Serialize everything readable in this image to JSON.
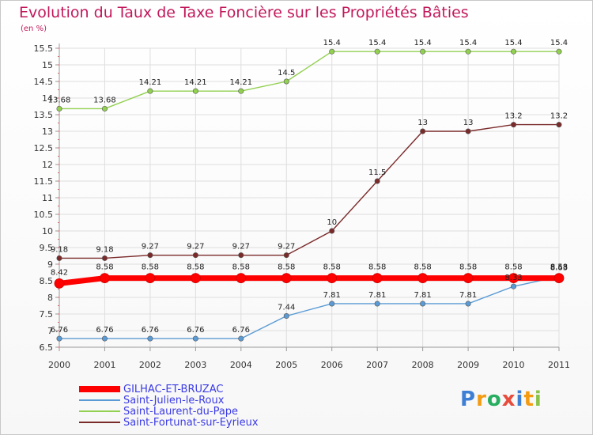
{
  "chart_data": {
    "type": "line",
    "title": "Evolution du Taux de Taxe Foncière sur les Propriétés Bâties",
    "unit_label": "(en %)",
    "x": [
      "2000",
      "2001",
      "2002",
      "2003",
      "2004",
      "2005",
      "2006",
      "2007",
      "2008",
      "2009",
      "2010",
      "2011"
    ],
    "ylim": [
      6.5,
      15.5
    ],
    "yticks": [
      "6.5",
      "7",
      "7.5",
      "8",
      "8.5",
      "9",
      "9.5",
      "10",
      "10.5",
      "11",
      "11.5",
      "12",
      "12.5",
      "13",
      "13.5",
      "14",
      "14.5",
      "15",
      "15.5"
    ],
    "grid": true,
    "legend_position": "bottom-left",
    "series": [
      {
        "name": "GILHAC-ET-BRUZAC",
        "color": "#ff0000",
        "values": [
          8.42,
          8.58,
          8.58,
          8.58,
          8.58,
          8.58,
          8.58,
          8.58,
          8.58,
          8.58,
          8.58,
          8.58
        ],
        "labels": [
          "8.42",
          "8.58",
          "8.58",
          "8.58",
          "8.58",
          "8.58",
          "8.58",
          "8.58",
          "8.58",
          "8.58",
          "8.58",
          "8.58"
        ]
      },
      {
        "name": "Saint-Julien-le-Roux",
        "color": "#5b9bd5",
        "values": [
          6.76,
          6.76,
          6.76,
          6.76,
          6.76,
          7.44,
          7.81,
          7.81,
          7.81,
          7.81,
          8.33,
          8.63
        ],
        "labels": [
          "6.76",
          "6.76",
          "6.76",
          "6.76",
          "6.76",
          "7.44",
          "7.81",
          "7.81",
          "7.81",
          "7.81",
          "8.33",
          "8.63"
        ]
      },
      {
        "name": "Saint-Laurent-du-Pape",
        "color": "#92d050",
        "values": [
          13.68,
          13.68,
          14.21,
          14.21,
          14.21,
          14.5,
          15.4,
          15.4,
          15.4,
          15.4,
          15.4,
          15.4
        ],
        "labels": [
          "13.68",
          "13.68",
          "14.21",
          "14.21",
          "14.21",
          "14.5",
          "15.4",
          "15.4",
          "15.4",
          "15.4",
          "15.4",
          "15.4"
        ]
      },
      {
        "name": "Saint-Fortunat-sur-Eyrieux",
        "color": "#7b2a2a",
        "values": [
          9.18,
          9.18,
          9.27,
          9.27,
          9.27,
          9.27,
          10,
          11.5,
          13,
          13,
          13.2,
          13.2
        ],
        "labels": [
          "9.18",
          "9.18",
          "9.27",
          "9.27",
          "9.27",
          "9.27",
          "10",
          "11.5",
          "13",
          "13",
          "13.2",
          "13.2"
        ]
      }
    ]
  },
  "logo": {
    "letters": [
      "P",
      "r",
      "o",
      "x",
      "i",
      "t",
      "i"
    ],
    "colors": [
      "#3e7fd6",
      "#f39c12",
      "#27ae60",
      "#e74c3c",
      "#3e7fd6",
      "#f39c12",
      "#8bc34a"
    ]
  }
}
